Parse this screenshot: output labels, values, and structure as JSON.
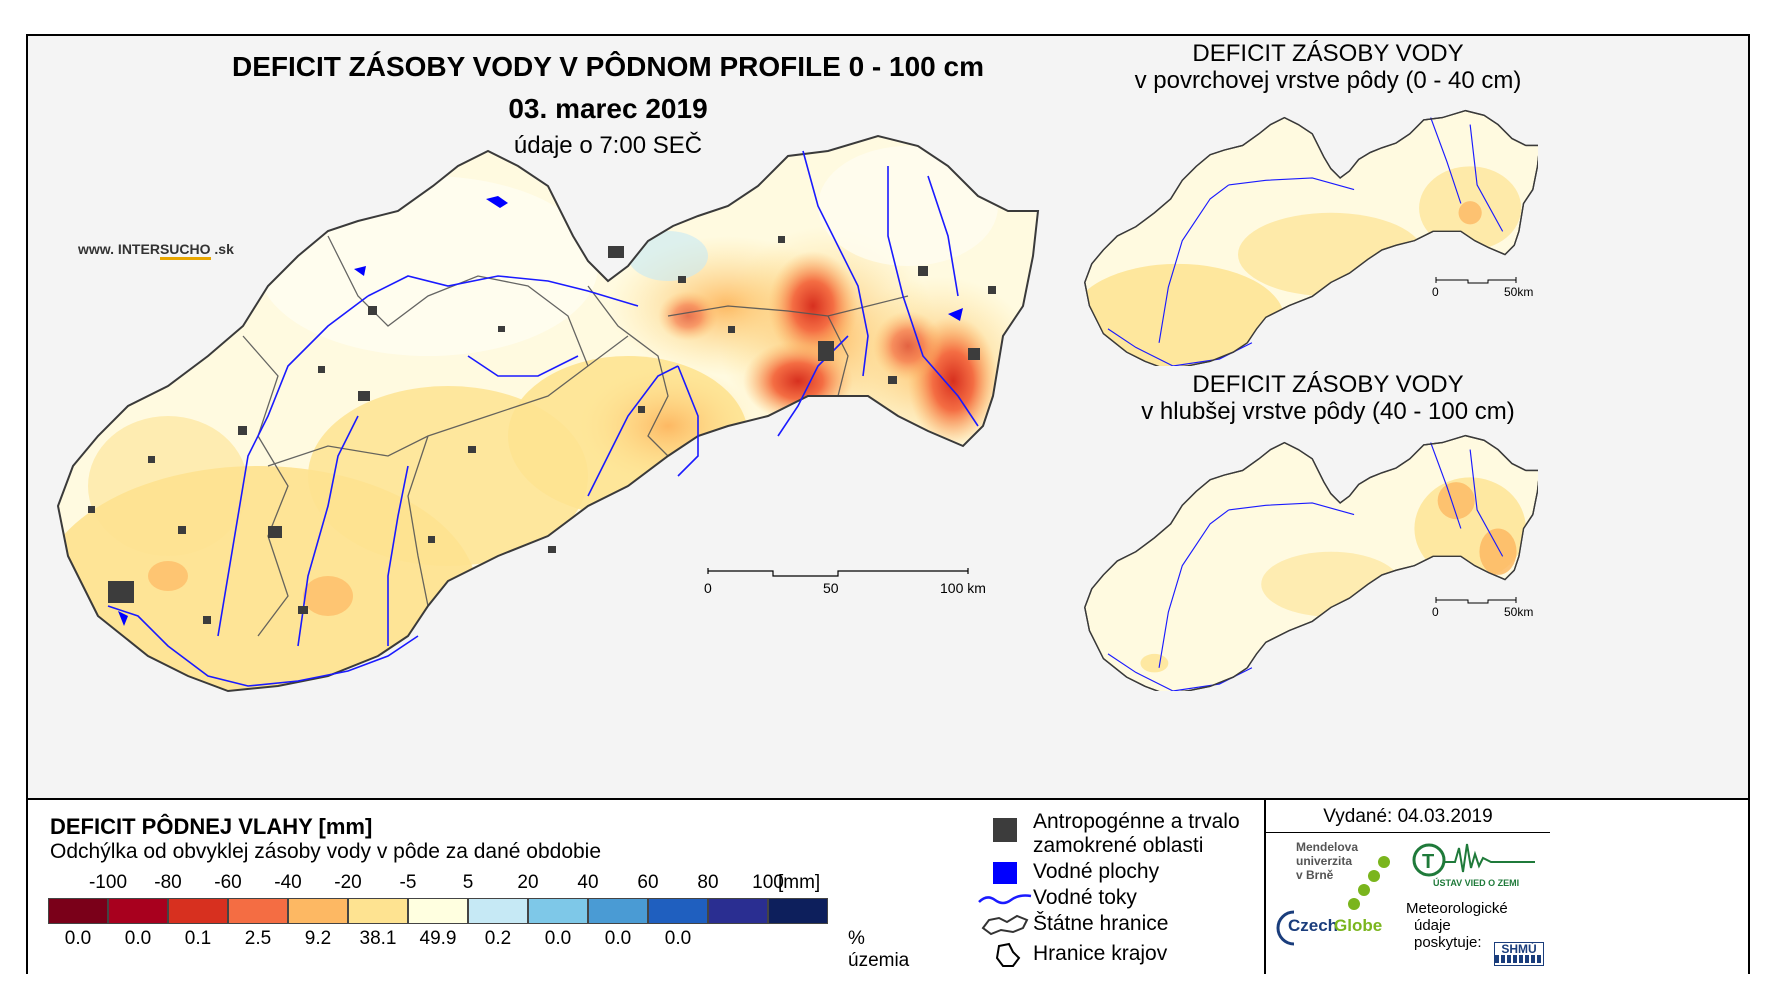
{
  "map": {
    "title": "DEFICIT ZÁSOBY VODY V PÔDNOM PROFILE 0 - 100 cm",
    "date": "03. marec 2019",
    "time_note": "údaje o 7:00 SEČ",
    "website": {
      "prefix": "www. INTER",
      "highlight": "SUCHO",
      "suffix": " .sk"
    },
    "scale": {
      "ticks": [
        "0",
        "50",
        "100 km"
      ]
    }
  },
  "inset_top": {
    "title_line1": "DEFICIT ZÁSOBY VODY",
    "title_line2": "v povrchovej vrstve pôdy (0 - 40 cm)",
    "scale": {
      "ticks": [
        "0",
        "50km"
      ]
    }
  },
  "inset_bottom": {
    "title_line1": "DEFICIT ZÁSOBY VODY",
    "title_line2": "v hlubšej vrstve pôdy (40 - 100 cm)",
    "scale": {
      "ticks": [
        "0",
        "50km"
      ]
    }
  },
  "legend": {
    "title": "DEFICIT PÔDNEJ VLAHY [mm]",
    "subtitle": "Odchýlka od obvyklej zásoby vody v pôde za dané obdobie",
    "class_bounds": [
      "-100",
      "-80",
      "-60",
      "-40",
      "-20",
      "-5",
      "5",
      "20",
      "40",
      "60",
      "80",
      "100"
    ],
    "unit": "[mm]",
    "colors": [
      "#7a0019",
      "#a8001e",
      "#d7301f",
      "#f46d43",
      "#fdb863",
      "#fee391",
      "#ffffe0",
      "#c6e9f5",
      "#7ec8e8",
      "#4a9bd4",
      "#1f5fbf",
      "#2a2e91",
      "#0d1f5c"
    ],
    "percent_values": [
      "0.0",
      "0.0",
      "0.1",
      "2.5",
      "9.2",
      "38.1",
      "49.9",
      "0.2",
      "0.0",
      "0.0",
      "0.0"
    ],
    "percent_label": "% územia"
  },
  "symbols": {
    "items": [
      {
        "label": "Antropogénne a trvalo zamokrené oblasti",
        "line1": "Antropogénne a trvalo",
        "line2": "zamokrené oblasti",
        "icon": "dark-square-icon",
        "color": "#3c3c3c"
      },
      {
        "label": "Vodné plochy",
        "icon": "blue-square-icon",
        "color": "#0000ff"
      },
      {
        "label": "Vodné toky",
        "icon": "river-line-icon",
        "color": "#1a1aff"
      },
      {
        "label": "Štátne hranice",
        "icon": "state-border-icon"
      },
      {
        "label": "Hranice krajov",
        "icon": "region-border-icon"
      }
    ]
  },
  "credits": {
    "issued": "Vydané: 04.03.2019",
    "mendel": [
      "Mendelova",
      "univerzita",
      "v Brně"
    ],
    "czechglobe": {
      "part1": "Czech",
      "part2": "Globe"
    },
    "ustav": "ÚSTAV VIED O ZEMI",
    "meteo": [
      "Meteorologické",
      "údaje",
      "poskytuje:"
    ],
    "shmu": "SHMÚ"
  }
}
